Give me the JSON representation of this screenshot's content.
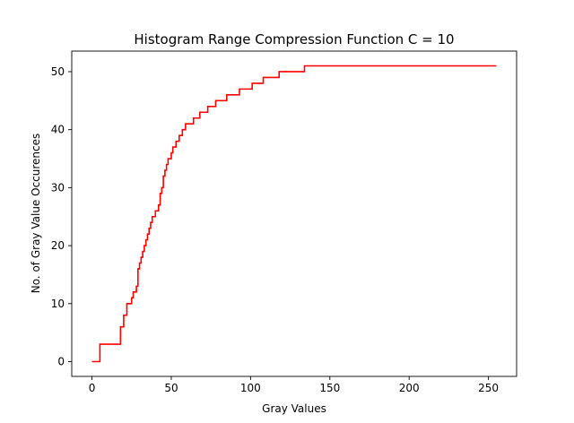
{
  "chart_data": {
    "type": "line",
    "title": "Histogram Range Compression Function C = 10",
    "xlabel": "Gray Values",
    "ylabel": "No. of Gray Value Occurences",
    "xlim": [
      -12.75,
      267.75
    ],
    "ylim": [
      -2.55,
      53.55
    ],
    "xticks": [
      0,
      50,
      100,
      150,
      200,
      250
    ],
    "yticks": [
      0,
      10,
      20,
      30,
      40,
      50
    ],
    "grid": false,
    "legend": "none",
    "series": [
      {
        "color": "#ff0000",
        "step": "post",
        "x": [
          0,
          4,
          5,
          8,
          12,
          16,
          18,
          20,
          22,
          24,
          25,
          26,
          28,
          29,
          30,
          31,
          32,
          33,
          34,
          35,
          36,
          37,
          38,
          39,
          40,
          42,
          43,
          44,
          45,
          46,
          47,
          48,
          49,
          50,
          51,
          53,
          55,
          57,
          59,
          61,
          64,
          68,
          73,
          78,
          85,
          93,
          101,
          108,
          118,
          134,
          255
        ],
        "y": [
          0,
          0,
          3,
          3,
          3,
          3,
          6,
          8,
          10,
          10,
          11,
          12,
          13,
          16,
          17,
          18,
          19,
          20,
          21,
          22,
          23,
          24,
          25,
          25,
          26,
          27,
          29,
          30,
          32,
          33,
          34,
          35,
          35,
          36,
          37,
          38,
          39,
          40,
          41,
          41,
          42,
          43,
          44,
          45,
          46,
          47,
          48,
          49,
          50,
          51,
          51
        ]
      }
    ]
  }
}
